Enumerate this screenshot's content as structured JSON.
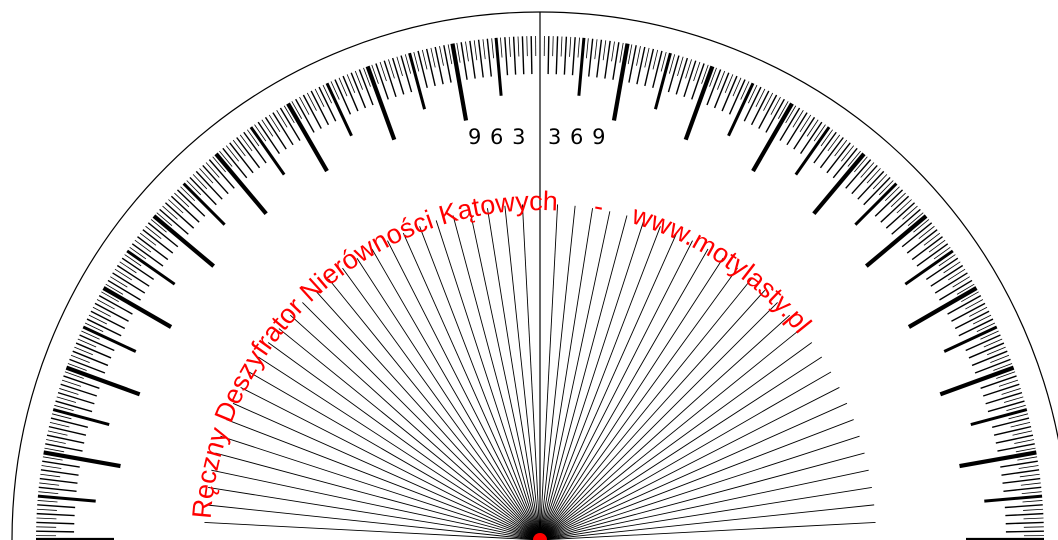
{
  "protractor": {
    "left_numbers": "9 6 3",
    "right_numbers": "3 6 9",
    "title_text": "Ręczny Deszyfrator Nierówności Kątowych",
    "separator": "-",
    "url_text": "www.motylasty.pl"
  },
  "colors": {
    "accent": "#ff0000",
    "ink": "#000000",
    "background": "#ffffff"
  }
}
